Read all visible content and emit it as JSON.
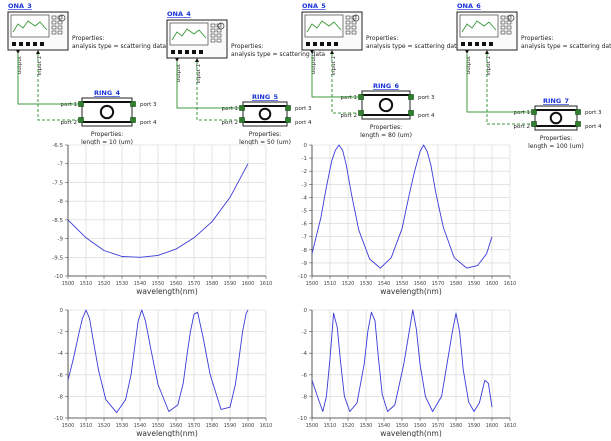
{
  "schematics": [
    {
      "ona_title": "ONA_3",
      "ring_title": "RING_4",
      "output_label": "output",
      "input_label": "input 1",
      "ona_props_title": "Properties:",
      "ona_props_value": "analysis type = scattering data",
      "ports": [
        "port 1",
        "port 2",
        "port 3",
        "port 4"
      ],
      "ring_props_title": "Properties:",
      "ring_props_value": "length = 10 (um)"
    },
    {
      "ona_title": "ONA_4",
      "ring_title": "RING_5",
      "output_label": "output",
      "input_label": "input 1",
      "ona_props_title": "Properties:",
      "ona_props_value": "analysis type = scattering data",
      "ports": [
        "port 1",
        "port 2",
        "port 3",
        "port 4"
      ],
      "ring_props_title": "Properties:",
      "ring_props_value": "length = 50 (um)"
    },
    {
      "ona_title": "ONA_5",
      "ring_title": "RING_6",
      "output_label": "output",
      "input_label": "input 1",
      "ona_props_title": "Properties:",
      "ona_props_value": "analysis type = scattering data",
      "ports": [
        "port 1",
        "port 2",
        "port 3",
        "port 4"
      ],
      "ring_props_title": "Properties:",
      "ring_props_value": "length = 80 (um)"
    },
    {
      "ona_title": "ONA_6",
      "ring_title": "RING_7",
      "output_label": "output",
      "input_label": "input 1",
      "ona_props_title": "Properties:",
      "ona_props_value": "analysis type = scattering data",
      "ports": [
        "port 1",
        "port 2",
        "port 3",
        "port 4"
      ],
      "ring_props_title": "Properties:",
      "ring_props_value": "length = 100 (um)"
    }
  ],
  "colors": {
    "title": "#1a34d6",
    "wire": "#3f9a3f",
    "port": "#2f7f2f",
    "curve": "#3a3ad8",
    "grid": "#d4d4d4"
  },
  "chart_data": [
    {
      "type": "line",
      "xlabel": "wavelength(nm)",
      "ylabel": "",
      "xlim": [
        1500,
        1610
      ],
      "xticks": [
        1500,
        1510,
        1520,
        1530,
        1540,
        1550,
        1560,
        1570,
        1580,
        1590,
        1600,
        1610
      ],
      "ylim": [
        -10,
        -6.5
      ],
      "yticks": [
        -10,
        -9.5,
        -9,
        -8.5,
        -8,
        -7.5,
        -7,
        -6.5
      ],
      "y_tick_labels": [
        "-10",
        "-9.5",
        "-9",
        "-8.5",
        "-8",
        "-7.5",
        "-7",
        "-6.5"
      ],
      "grid": true,
      "x": [
        1500,
        1510,
        1520,
        1530,
        1540,
        1550,
        1560,
        1570,
        1580,
        1590,
        1600
      ],
      "y": [
        -8.5,
        -8.98,
        -9.32,
        -9.48,
        -9.5,
        -9.45,
        -9.28,
        -8.98,
        -8.55,
        -7.9,
        -7.0
      ]
    },
    {
      "type": "line",
      "xlabel": "wavelength(nm)",
      "ylabel": "",
      "xlim": [
        1500,
        1610
      ],
      "xticks": [
        1500,
        1510,
        1520,
        1530,
        1540,
        1550,
        1560,
        1570,
        1580,
        1590,
        1600,
        1610
      ],
      "ylim": [
        -10,
        0
      ],
      "yticks": [
        -10,
        -9,
        -8,
        -7,
        -6,
        -5,
        -4,
        -3,
        -2,
        -1,
        0
      ],
      "y_tick_labels": [
        "-10",
        "-9",
        "-8",
        "-7",
        "-6",
        "-5",
        "-4",
        "-3",
        "-2",
        "-1",
        "0"
      ],
      "grid": true,
      "x": [
        1500,
        1505,
        1508,
        1511,
        1513,
        1515,
        1517,
        1519,
        1522,
        1526,
        1532,
        1538,
        1544,
        1550,
        1554,
        1557,
        1560,
        1562,
        1564,
        1566,
        1569,
        1573,
        1579,
        1586,
        1592,
        1597,
        1600
      ],
      "y": [
        -8.3,
        -5.5,
        -3.2,
        -1.2,
        -0.4,
        0,
        -0.4,
        -1.5,
        -3.8,
        -6.5,
        -8.7,
        -9.4,
        -8.6,
        -6.4,
        -3.8,
        -2.0,
        -0.5,
        0,
        -0.5,
        -1.5,
        -3.8,
        -6.3,
        -8.6,
        -9.4,
        -9.2,
        -8.3,
        -7.0
      ]
    },
    {
      "type": "line",
      "xlabel": "wavelength(nm)",
      "ylabel": "",
      "xlim": [
        1500,
        1610
      ],
      "xticks": [
        1500,
        1510,
        1520,
        1530,
        1540,
        1550,
        1560,
        1570,
        1580,
        1590,
        1600,
        1610
      ],
      "ylim": [
        -10,
        0
      ],
      "yticks": [
        -10,
        -8,
        -6,
        -4,
        -2,
        0
      ],
      "y_tick_labels": [
        "-10",
        "-8",
        "-6",
        "-4",
        "-2",
        "0"
      ],
      "grid": true,
      "x": [
        1500,
        1503,
        1506,
        1508,
        1510,
        1512,
        1514,
        1517,
        1521,
        1527,
        1532,
        1535,
        1537,
        1539,
        1541,
        1543,
        1546,
        1550,
        1556,
        1561,
        1564,
        1566,
        1568,
        1570,
        1572,
        1575,
        1579,
        1585,
        1590,
        1593,
        1595,
        1597,
        1599,
        1600
      ],
      "y": [
        -6.5,
        -4.5,
        -2.2,
        -0.8,
        0,
        -0.8,
        -2.8,
        -5.6,
        -8.3,
        -9.5,
        -8.3,
        -6.0,
        -3.5,
        -1.0,
        0,
        -1.0,
        -3.6,
        -6.9,
        -9.4,
        -8.8,
        -6.8,
        -4.3,
        -2.0,
        -0.4,
        -0.2,
        -2.5,
        -6.0,
        -9.2,
        -9.0,
        -6.9,
        -4.5,
        -2.0,
        -0.3,
        0
      ]
    },
    {
      "type": "line",
      "xlabel": "wavelength(nm)",
      "ylabel": "",
      "xlim": [
        1500,
        1610
      ],
      "xticks": [
        1500,
        1510,
        1520,
        1530,
        1540,
        1550,
        1560,
        1570,
        1580,
        1590,
        1600,
        1610
      ],
      "ylim": [
        -10,
        0
      ],
      "yticks": [
        -10,
        -8,
        -6,
        -4,
        -2,
        0
      ],
      "y_tick_labels": [
        "-10",
        "-8",
        "-6",
        "-4",
        "-2",
        "0"
      ],
      "grid": true,
      "x": [
        1500,
        1503,
        1506,
        1508,
        1510,
        1512,
        1514,
        1516,
        1518,
        1521,
        1525,
        1529,
        1531,
        1533,
        1535,
        1537,
        1539,
        1542,
        1546,
        1551,
        1554,
        1556,
        1558,
        1560,
        1563,
        1567,
        1572,
        1575,
        1578,
        1580,
        1582,
        1584,
        1587,
        1590,
        1593,
        1596,
        1598,
        1600
      ],
      "y": [
        -6.5,
        -8.0,
        -9.4,
        -8.0,
        -4.5,
        -0.3,
        -1.6,
        -5.0,
        -8.0,
        -9.4,
        -8.6,
        -5.0,
        -2.0,
        -0.2,
        -1.0,
        -4.6,
        -7.8,
        -9.4,
        -8.8,
        -5.0,
        -2.0,
        0,
        -1.8,
        -5.0,
        -8.0,
        -9.4,
        -8.0,
        -5.0,
        -2.0,
        -0.3,
        -2.0,
        -5.5,
        -8.5,
        -9.4,
        -8.6,
        -6.5,
        -6.8,
        -9.0
      ]
    }
  ]
}
